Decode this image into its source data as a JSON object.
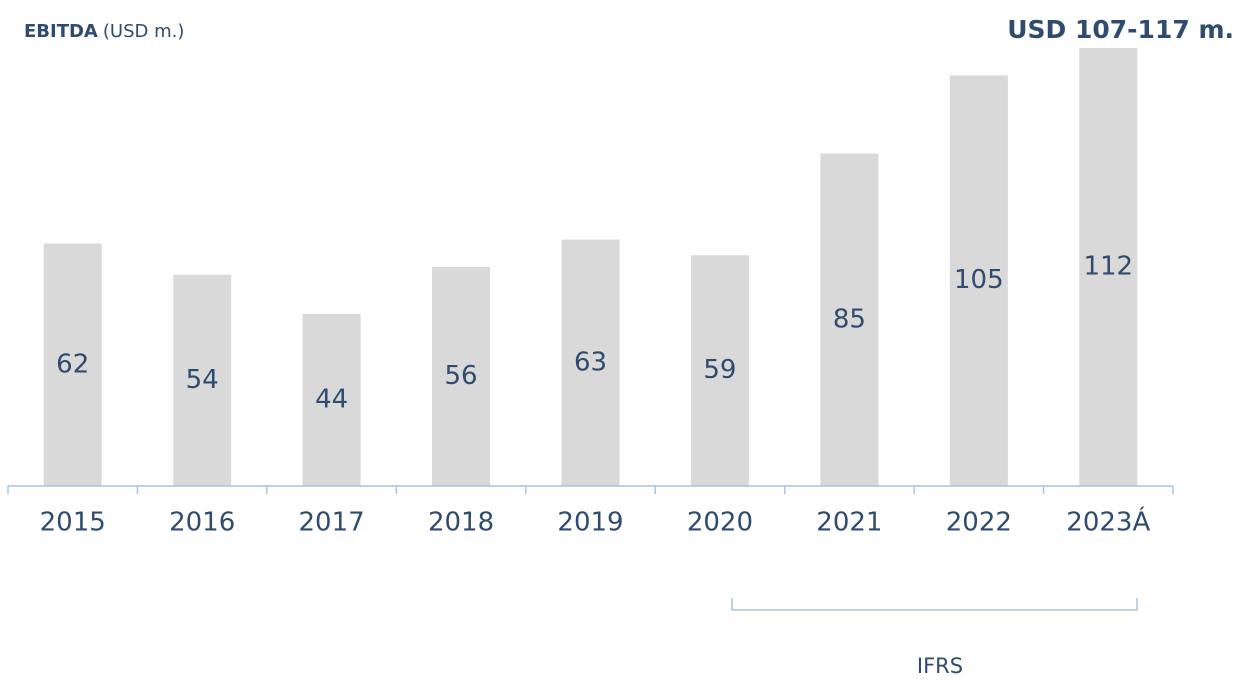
{
  "chart_data": {
    "type": "bar",
    "title": "EBITDA",
    "subtitle": "(USD m.)",
    "annotation": "USD 107-117 m.",
    "bracket_label": "IFRS",
    "categories": [
      "2015",
      "2016",
      "2017",
      "2018",
      "2019",
      "2020",
      "2021",
      "2022",
      "2023Á"
    ],
    "values": [
      62,
      54,
      44,
      56,
      63,
      59,
      85,
      105,
      112
    ],
    "color": "#d9d9d9",
    "ylim": [
      0,
      112
    ]
  }
}
